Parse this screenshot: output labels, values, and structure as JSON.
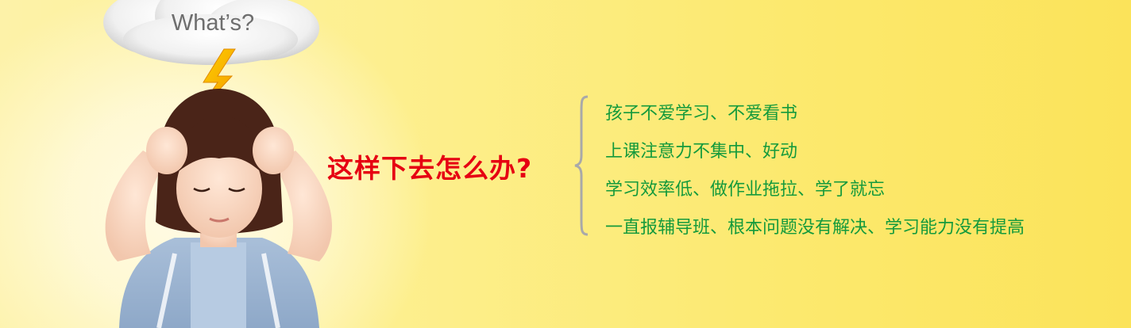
{
  "cloud": {
    "text": "What’s?"
  },
  "headline": "这样下去怎么办?",
  "problems": [
    "孩子不爱学习、不爱看书",
    "上课注意力不集中、好动",
    "学习效率低、做作业拖拉、学了就忘",
    "一直报辅导班、根本问题没有解决、学习能力没有提高"
  ],
  "colors": {
    "headline": "#e60012",
    "problem_text": "#149a3c",
    "bracket": "#a9a9a9"
  }
}
